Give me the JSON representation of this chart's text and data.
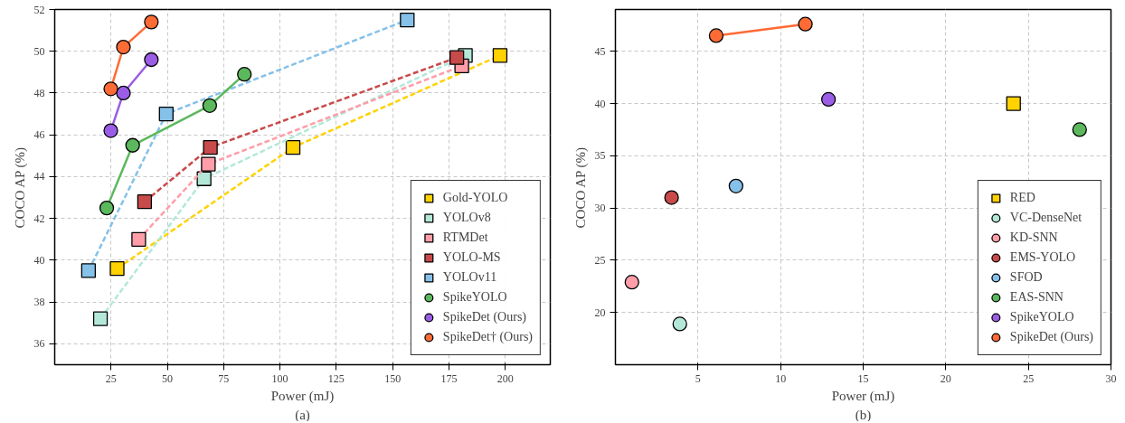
{
  "chart_data": [
    {
      "type": "line",
      "xlabel": "Power (mJ)",
      "ylabel": "COCO AP (%)",
      "annotations": [
        "(a)"
      ],
      "xlim": [
        0,
        220
      ],
      "ylim": [
        35,
        52
      ],
      "xticks": [
        25,
        50,
        75,
        100,
        125,
        150,
        175,
        200
      ],
      "yticks": [
        36,
        38,
        40,
        42,
        44,
        46,
        48,
        50,
        52
      ],
      "grid": true,
      "legend": "bottom right",
      "series": [
        {
          "name": "Gold-YOLO",
          "marker": "square",
          "line_style": "dashed",
          "color": "#ffd200",
          "x": [
            27.7,
            105.8,
            197.7
          ],
          "values": [
            39.6,
            45.4,
            49.8
          ]
        },
        {
          "name": "YOLOv8",
          "marker": "square",
          "line_style": "dashed",
          "color": "#b3e8d8",
          "x": [
            20.3,
            66.3,
            182.3
          ],
          "values": [
            37.2,
            43.9,
            49.8
          ]
        },
        {
          "name": "RTMDet",
          "marker": "square",
          "line_style": "dashed",
          "color": "#ff9ea8",
          "x": [
            37.3,
            68.2,
            180.7
          ],
          "values": [
            41.0,
            44.6,
            49.3
          ]
        },
        {
          "name": "YOLO-MS",
          "marker": "square",
          "line_style": "dashed",
          "color": "#c94a4a",
          "x": [
            39.9,
            69.1,
            178.5
          ],
          "values": [
            42.8,
            45.4,
            49.7
          ]
        },
        {
          "name": "YOLOv11",
          "marker": "square",
          "line_style": "dashed",
          "color": "#85c1e9",
          "x": [
            15.0,
            49.5,
            156.5
          ],
          "values": [
            39.5,
            47.0,
            51.5
          ]
        },
        {
          "name": "SpikeYOLO",
          "marker": "circle",
          "line_style": "solid",
          "color": "#5cb85c",
          "x": [
            23.1,
            34.6,
            68.8,
            84.2
          ],
          "values": [
            42.5,
            45.5,
            47.4,
            48.9
          ]
        },
        {
          "name": "SpikeDet (Ours)",
          "marker": "circle",
          "line_style": "solid",
          "color": "#9b5de5",
          "x": [
            24.9,
            30.5,
            42.9
          ],
          "values": [
            46.2,
            48.0,
            49.6
          ]
        },
        {
          "name": "SpikeDet† (Ours)",
          "marker": "circle",
          "line_style": "solid",
          "color": "#ff6b35",
          "x": [
            24.9,
            30.5,
            42.9
          ],
          "values": [
            48.2,
            50.2,
            51.4
          ]
        }
      ]
    },
    {
      "type": "scatter",
      "xlabel": "Power (mJ)",
      "ylabel": "COCO AP (%)",
      "annotations": [
        "(b)"
      ],
      "xlim": [
        0,
        30
      ],
      "ylim": [
        15,
        49
      ],
      "xticks": [
        5,
        10,
        15,
        20,
        25,
        30
      ],
      "yticks": [
        20,
        25,
        30,
        35,
        40,
        45
      ],
      "grid": true,
      "legend": "bottom right",
      "series": [
        {
          "name": "RED",
          "marker": "square",
          "color": "#ffd200",
          "x": [
            24.1
          ],
          "values": [
            40.0
          ]
        },
        {
          "name": "VC-DenseNet",
          "marker": "circle",
          "color": "#b3e8d8",
          "x": [
            3.9
          ],
          "values": [
            18.9
          ]
        },
        {
          "name": "KD-SNN",
          "marker": "circle",
          "color": "#ff9ea8",
          "x": [
            1.0
          ],
          "values": [
            22.9
          ]
        },
        {
          "name": "EMS-YOLO",
          "marker": "circle",
          "color": "#c94a4a",
          "x": [
            3.4
          ],
          "values": [
            31.0
          ]
        },
        {
          "name": "SFOD",
          "marker": "circle",
          "color": "#85c1e9",
          "x": [
            7.3
          ],
          "values": [
            32.1
          ]
        },
        {
          "name": "EAS-SNN",
          "marker": "circle",
          "color": "#5cb85c",
          "x": [
            28.1
          ],
          "values": [
            37.5
          ]
        },
        {
          "name": "SpikeYOLO",
          "marker": "circle",
          "color": "#9b5de5",
          "x": [
            12.9
          ],
          "values": [
            40.4
          ]
        },
        {
          "name": "SpikeDet (Ours)",
          "type": "line",
          "marker": "circle",
          "line_style": "solid",
          "color": "#ff6b35",
          "x": [
            6.1,
            11.5
          ],
          "values": [
            46.5,
            47.6
          ]
        }
      ]
    }
  ]
}
